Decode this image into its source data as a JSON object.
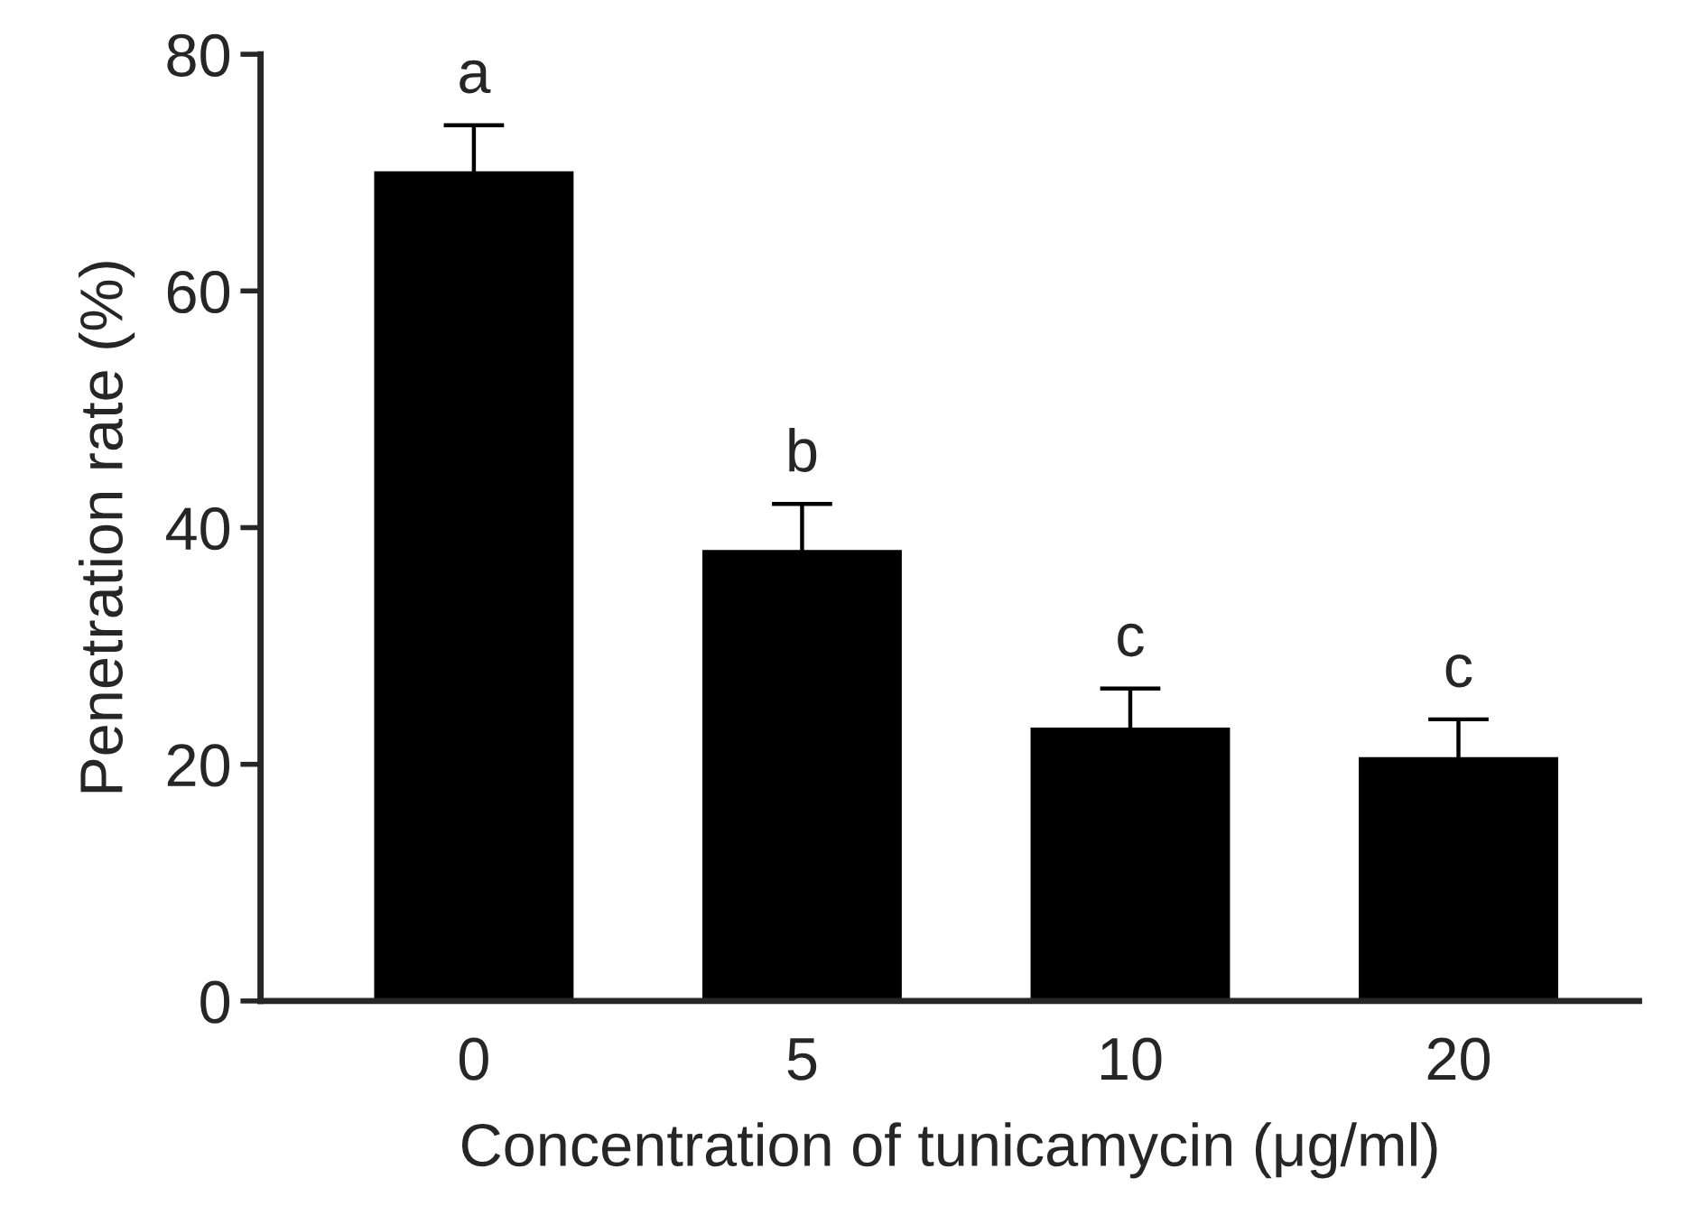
{
  "chart_data": {
    "type": "bar",
    "xlabel": "Concentration of tunicamycin (μg/ml)",
    "ylabel": "Penetration rate (%)",
    "categories": [
      "0",
      "5",
      "10",
      "20"
    ],
    "values": [
      70,
      38,
      23,
      20.5
    ],
    "errors": [
      4,
      4,
      3.4,
      3.3
    ],
    "color": "#000000",
    "ylim": [
      0,
      80
    ],
    "yticks": [
      0,
      20,
      40,
      60,
      80
    ],
    "grid": false,
    "annotations": [
      {
        "text": "a",
        "x": "0",
        "y": 70
      },
      {
        "text": "b",
        "x": "5",
        "y": 38
      },
      {
        "text": "c",
        "x": "10",
        "y": 23
      },
      {
        "text": "c",
        "x": "20",
        "y": 20.5
      }
    ]
  }
}
